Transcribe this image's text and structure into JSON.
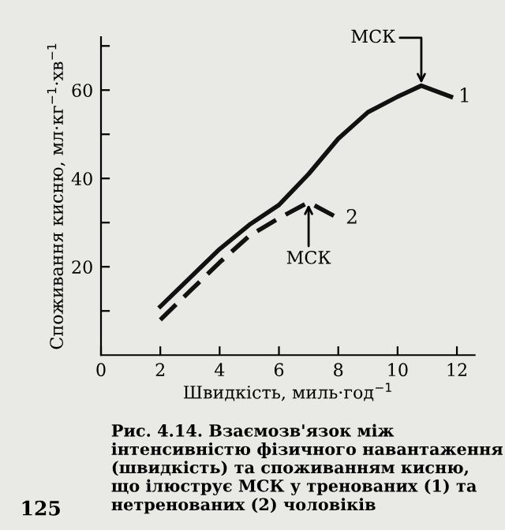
{
  "chart_data": {
    "type": "line",
    "xlabel": "Швидкість, миль·год$^{−1}$",
    "ylabel": "Споживання кисню, мл·кг$^{−1}$·хв$^{−1}$",
    "series": [
      {
        "name": "1",
        "color": "#111111",
        "line_style": "solid",
        "x": [
          2,
          3,
          4,
          5,
          6,
          7,
          8,
          9,
          10,
          10.8,
          11.8
        ],
        "values": [
          11,
          17.5,
          24,
          29.5,
          34,
          41,
          49,
          55,
          58.5,
          61,
          58.5
        ]
      },
      {
        "name": "2",
        "color": "#111111",
        "line_style": "dashed",
        "x": [
          2,
          3,
          4,
          5,
          6,
          7,
          8
        ],
        "values": [
          8,
          14.5,
          21,
          27,
          31,
          34.6,
          31
        ]
      }
    ],
    "xlim": [
      0,
      12.6
    ],
    "ylim": [
      0,
      72
    ],
    "xticks": [
      0,
      2,
      4,
      6,
      8,
      10,
      12
    ],
    "yticks": [
      {
        "value": 10,
        "label": null
      },
      20,
      {
        "value": 30,
        "label": null
      },
      40,
      {
        "value": 50,
        "label": null
      },
      60,
      {
        "value": 70,
        "label": null
      }
    ],
    "grid": false,
    "legend": false,
    "marker": "none",
    "annotations": [
      {
        "text": "МСК",
        "x": 10.8,
        "y": 61
      },
      {
        "text": "МСК",
        "x": 7,
        "y": 34.6
      },
      "Рис. 4.14. Взаємозв'язок між інтенсивністю фізичного навантаження (швидкість) та споживанням кисню, що ілюструє МСК у тренованих (1) та нетренованих (2) чоловіків",
      "125"
    ]
  }
}
